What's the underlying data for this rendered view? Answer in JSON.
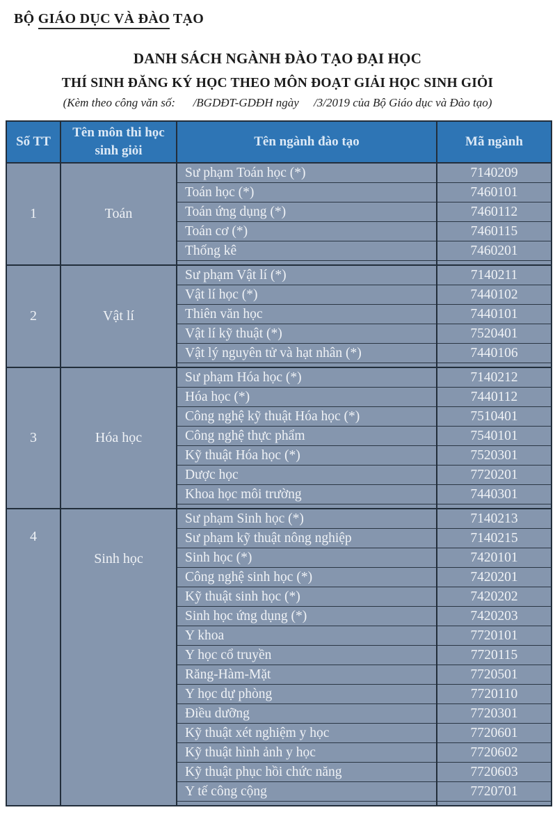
{
  "document": {
    "ministry": {
      "prefix": "BỘ ",
      "underlined": "GIÁO DỤC VÀ ĐÀO",
      "suffix": " TẠO"
    },
    "title": "DANH SÁCH NGÀNH ĐÀO TẠO ĐẠI HỌC",
    "subtitle": "THÍ SINH ĐĂNG KÝ HỌC THEO MÔN ĐOẠT GIẢI HỌC SINH GIỎI",
    "note": "(Kèm theo công văn số:      /BGDĐT-GDĐH ngày     /3/2019 của Bộ Giáo dục và Đào tạo)"
  },
  "table": {
    "columns": [
      "Số TT",
      "Tên môn thi học sinh giỏi",
      "Tên ngành đào tạo",
      "Mã ngành"
    ],
    "groups": [
      {
        "stt": "1",
        "subject": "Toán",
        "majors": [
          {
            "name": "Sư phạm Toán học (*)",
            "code": "7140209"
          },
          {
            "name": "Toán học (*)",
            "code": "7460101"
          },
          {
            "name": "Toán ứng dụng (*)",
            "code": "7460112"
          },
          {
            "name": "Toán cơ (*)",
            "code": "7460115"
          },
          {
            "name": "Thống kê",
            "code": "7460201"
          }
        ]
      },
      {
        "stt": "2",
        "subject": "Vật lí",
        "majors": [
          {
            "name": "Sư phạm Vật lí (*)",
            "code": "7140211"
          },
          {
            "name": "Vật lí học (*)",
            "code": "7440102"
          },
          {
            "name": "Thiên văn học",
            "code": "7440101"
          },
          {
            "name": "Vật lí kỹ thuật (*)",
            "code": "7520401"
          },
          {
            "name": "Vật lý nguyên tử và hạt nhân (*)",
            "code": "7440106"
          }
        ]
      },
      {
        "stt": "3",
        "subject": "Hóa học",
        "majors": [
          {
            "name": "Sư phạm Hóa học (*)",
            "code": "7140212"
          },
          {
            "name": "Hóa học (*)",
            "code": "7440112"
          },
          {
            "name": "Công nghệ kỹ thuật Hóa học (*)",
            "code": "7510401"
          },
          {
            "name": "Công nghệ thực phẩm",
            "code": "7540101"
          },
          {
            "name": "Kỹ thuật Hóa học (*)",
            "code": "7520301"
          },
          {
            "name": "Dược học",
            "code": "7720201"
          },
          {
            "name": "Khoa học môi trường",
            "code": "7440301"
          }
        ]
      },
      {
        "stt": "4",
        "subject": "Sinh học",
        "majors": [
          {
            "name": "Sư phạm Sinh học (*)",
            "code": "7140213"
          },
          {
            "name": "Sư phạm kỹ thuật nông nghiệp",
            "code": "7140215"
          },
          {
            "name": "Sinh học (*)",
            "code": "7420101"
          },
          {
            "name": "Công nghệ sinh học (*)",
            "code": "7420201"
          },
          {
            "name": "Kỹ thuật sinh học (*)",
            "code": "7420202"
          },
          {
            "name": "Sinh học ứng dụng (*)",
            "code": "7420203"
          },
          {
            "name": "Y khoa",
            "code": "7720101"
          },
          {
            "name": "Y học cổ truyền",
            "code": "7720115"
          },
          {
            "name": "Răng-Hàm-Mặt",
            "code": "7720501"
          },
          {
            "name": "Y học dự phòng",
            "code": "7720110"
          },
          {
            "name": "Điều dưỡng",
            "code": "7720301"
          },
          {
            "name": "Kỹ thuật xét nghiệm y học",
            "code": "7720601"
          },
          {
            "name": "Kỹ thuật hình ảnh y học",
            "code": "7720602"
          },
          {
            "name": "Kỹ thuật phục hồi chức năng",
            "code": "7720603"
          },
          {
            "name": "Y tế công cộng",
            "code": "7720701"
          }
        ]
      }
    ]
  },
  "colors": {
    "header_bg": "#2e75b5",
    "cell_bg": "#8596ae",
    "border": "#222e3b",
    "header_text": "#dce9f6",
    "cell_text": "#eff2f6"
  }
}
